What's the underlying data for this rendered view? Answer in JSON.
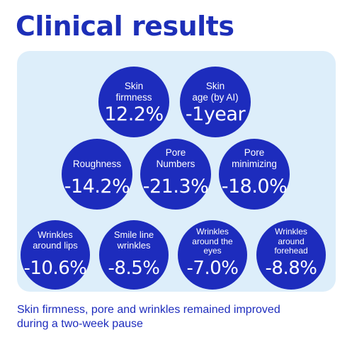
{
  "title": "Clinical results",
  "colors": {
    "accent": "#1d2cbd",
    "panel_bg": "#ddeefa",
    "text_on_accent": "#ffffff"
  },
  "results": [
    {
      "label": "Skin\nfirmness",
      "value": "12.2%"
    },
    {
      "label": "Skin\nage (by AI)",
      "value": "-1year"
    },
    {
      "label": "Roughness",
      "value": "-14.2%"
    },
    {
      "label": "Pore\nNumbers",
      "value": "-21.3%"
    },
    {
      "label": "Pore\nminimizing",
      "value": "-18.0%"
    },
    {
      "label": "Wrinkles\naround lips",
      "value": "-10.6%"
    },
    {
      "label": "Smile line\nwrinkles",
      "value": "-8.5%"
    },
    {
      "label": "Wrinkles\naround the\neyes",
      "value": "-7.0%"
    },
    {
      "label": "Wrinkles\naround\nforehead",
      "value": "-8.8%"
    }
  ],
  "footer": {
    "line1": "Skin firmness, pore and wrinkles remained improved",
    "line2": "during a two-week pause"
  }
}
